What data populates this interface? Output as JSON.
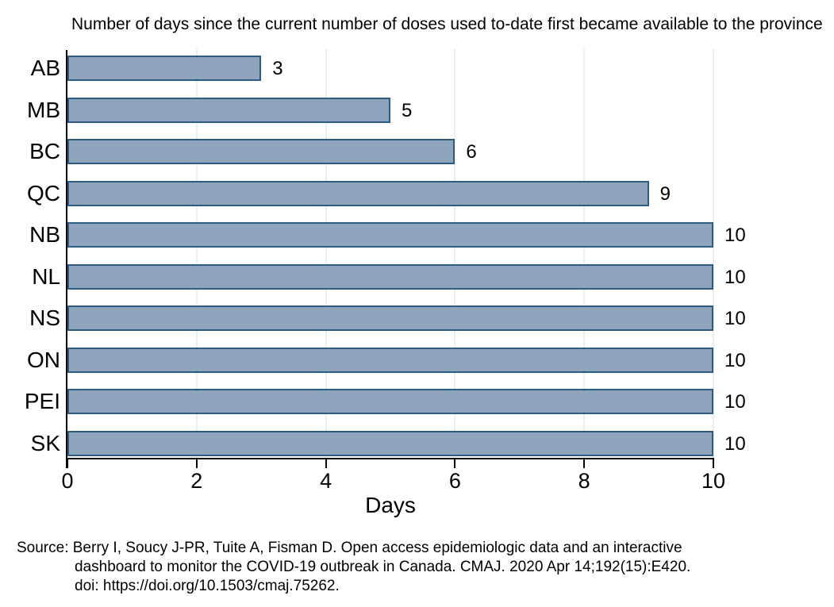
{
  "title": "Number of days since the current number of doses used to-date first became available to the province",
  "chart_data": {
    "type": "bar",
    "orientation": "horizontal",
    "title": "Number of days since the current number of doses used to-date first became available to the province",
    "categories": [
      "AB",
      "MB",
      "BC",
      "QC",
      "NB",
      "NL",
      "NS",
      "ON",
      "PEI",
      "SK"
    ],
    "values": [
      3,
      5,
      6,
      9,
      10,
      10,
      10,
      10,
      10,
      10
    ],
    "data_labels": [
      "3",
      "5",
      "6",
      "9",
      "10",
      "10",
      "10",
      "10",
      "10",
      "10"
    ],
    "xlabel": "Days",
    "ylabel": "",
    "xlim": [
      0,
      10
    ],
    "x_ticks": [
      0,
      2,
      4,
      6,
      8,
      10
    ],
    "legend": "none",
    "grid": "vertical gridlines at even ticks, very light",
    "colors": {
      "bar_fill": "#8da4bc",
      "bar_border": "#2e5c80",
      "gridline": "#e9eef2",
      "axis": "#000000",
      "background": "#ffffff",
      "text": "#000000"
    }
  },
  "source_note": {
    "lines": [
      "Source: Berry I, Soucy J-PR, Tuite A, Fisman D. Open access epidemiologic data and an interactive",
      "dashboard to monitor the COVID-19 outbreak in Canada. CMAJ. 2020 Apr 14;192(15):E420.",
      "doi: https://doi.org/10.1503/cmaj.75262."
    ]
  }
}
